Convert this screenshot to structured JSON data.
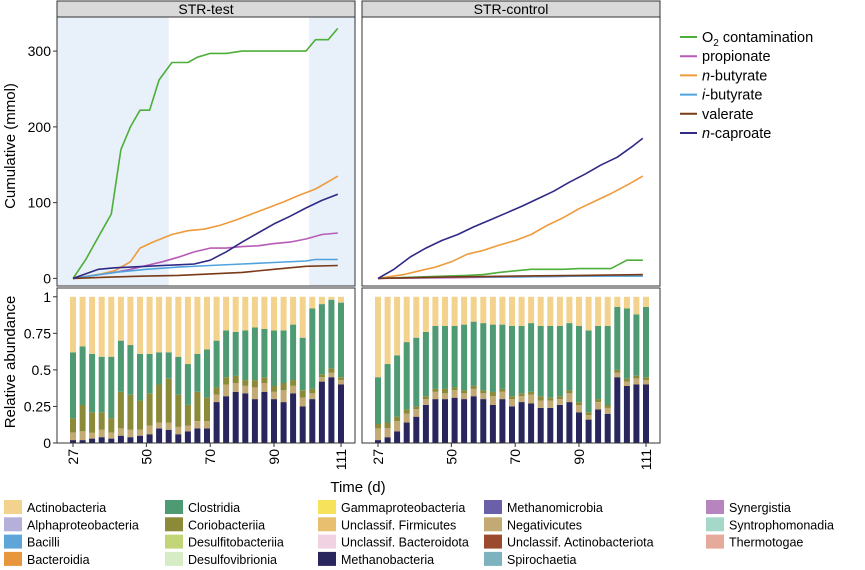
{
  "chart_data": {
    "type": "line+stacked-bar",
    "panels": [
      "STR-test",
      "STR-control"
    ],
    "xlabel": "Time (d)",
    "x_ticks": [
      27,
      50,
      70,
      90,
      111
    ],
    "top": {
      "ylabel": "Cumulative (mmol)",
      "ylim": [
        -10,
        345
      ],
      "y_ticks": [
        0,
        100,
        200,
        300
      ],
      "shaded_intervals_test": [
        [
          27,
          57
        ],
        [
          101,
          111
        ]
      ],
      "legend": [
        {
          "label": "O2 contamination",
          "color": "#4daf3a"
        },
        {
          "label": "propionate",
          "color": "#b85bb7"
        },
        {
          "label": "n-butyrate",
          "color": "#ef9a3b"
        },
        {
          "label": "i-butyrate",
          "color": "#4fa3dd"
        },
        {
          "label": "valerate",
          "color": "#7a3a17"
        },
        {
          "label": "n-caproate",
          "color": "#2e2a86"
        }
      ],
      "series": {
        "STR-test": [
          {
            "name": "O2 contamination",
            "x": [
              27,
              31,
              35,
              39,
              42,
              45,
              48,
              51,
              54,
              58,
              63,
              66,
              70,
              75,
              80,
              85,
              90,
              95,
              100,
              103,
              107,
              110
            ],
            "y": [
              0,
              25,
              55,
              85,
              170,
              200,
              222,
              222,
              262,
              285,
              285,
              292,
              297,
              297,
              300,
              300,
              300,
              300,
              300,
              315,
              315,
              330
            ]
          },
          {
            "name": "propionate",
            "x": [
              27,
              35,
              40,
              45,
              50,
              55,
              60,
              65,
              70,
              75,
              80,
              85,
              90,
              95,
              100,
              105,
              110
            ],
            "y": [
              0,
              5,
              8,
              12,
              17,
              22,
              28,
              35,
              40,
              40,
              42,
              43,
              46,
              48,
              52,
              58,
              60
            ]
          },
          {
            "name": "n-butyrate",
            "x": [
              27,
              35,
              40,
              45,
              48,
              52,
              58,
              63,
              68,
              73,
              78,
              83,
              88,
              93,
              98,
              103,
              108,
              110
            ],
            "y": [
              0,
              5,
              10,
              22,
              40,
              48,
              58,
              63,
              65,
              70,
              77,
              85,
              93,
              101,
              110,
              118,
              130,
              135
            ]
          },
          {
            "name": "i-butyrate",
            "x": [
              27,
              40,
              50,
              60,
              70,
              80,
              90,
              100,
              103,
              110
            ],
            "y": [
              0,
              8,
              12,
              15,
              17,
              19,
              21,
              23,
              25,
              25
            ]
          },
          {
            "name": "valerate",
            "x": [
              27,
              40,
              50,
              60,
              70,
              80,
              90,
              100,
              110
            ],
            "y": [
              0,
              2,
              3,
              4,
              6,
              8,
              12,
              16,
              17
            ]
          },
          {
            "name": "n-caproate",
            "x": [
              27,
              35,
              40,
              45,
              50,
              55,
              60,
              65,
              70,
              75,
              80,
              85,
              90,
              95,
              100,
              105,
              110
            ],
            "y": [
              0,
              12,
              14,
              15,
              16,
              17,
              18,
              19,
              24,
              35,
              48,
              60,
              72,
              82,
              93,
              103,
              111
            ]
          }
        ],
        "STR-control": [
          {
            "name": "O2 contamination",
            "x": [
              27,
              40,
              55,
              60,
              65,
              70,
              75,
              80,
              85,
              90,
              95,
              100,
              105,
              110
            ],
            "y": [
              0,
              2,
              4,
              5,
              8,
              10,
              12,
              12,
              12,
              13,
              13,
              13,
              24,
              24
            ]
          },
          {
            "name": "propionate",
            "x": [
              27,
              50,
              70,
              90,
              110
            ],
            "y": [
              0,
              1,
              2,
              3,
              4
            ]
          },
          {
            "name": "n-butyrate",
            "x": [
              27,
              35,
              40,
              45,
              50,
              55,
              60,
              65,
              70,
              75,
              80,
              85,
              90,
              95,
              100,
              105,
              110
            ],
            "y": [
              0,
              5,
              10,
              15,
              22,
              32,
              37,
              44,
              50,
              58,
              70,
              80,
              92,
              102,
              112,
              123,
              135
            ]
          },
          {
            "name": "i-butyrate",
            "x": [
              27,
              50,
              70,
              90,
              110
            ],
            "y": [
              0,
              2,
              2,
              3,
              3
            ]
          },
          {
            "name": "valerate",
            "x": [
              27,
              50,
              70,
              90,
              110
            ],
            "y": [
              0,
              2,
              3,
              4,
              5
            ]
          },
          {
            "name": "n-caproate",
            "x": [
              27,
              32,
              37,
              42,
              47,
              52,
              57,
              62,
              67,
              72,
              77,
              82,
              87,
              92,
              97,
              102,
              107,
              110
            ],
            "y": [
              0,
              12,
              28,
              40,
              50,
              58,
              68,
              77,
              86,
              95,
              105,
              115,
              127,
              138,
              150,
              160,
              175,
              185
            ]
          }
        ]
      }
    },
    "bottom": {
      "ylabel": "Relative abundance",
      "ylim": [
        0,
        1.06
      ],
      "y_ticks": [
        "0",
        "0.25",
        "0.5",
        "0.75",
        "1"
      ],
      "y_tick_values": [
        0,
        0.25,
        0.5,
        0.75,
        1
      ],
      "stack_order": [
        "Methanobacteria",
        "Negativicutes",
        "Coriobacteriia",
        "Clostridia",
        "Actinobacteria"
      ],
      "colors": {
        "Methanobacteria": "#29265e",
        "Negativicutes": "#c3a973",
        "Coriobacteriia": "#8a8a38",
        "Clostridia": "#4e9a72",
        "Actinobacteria": "#f3d28e"
      },
      "STR-test": {
        "days": [
          27,
          30,
          33,
          36,
          39,
          42,
          45,
          48,
          51,
          54,
          57,
          60,
          63,
          66,
          69,
          72,
          75,
          78,
          81,
          84,
          87,
          90,
          93,
          96,
          99,
          102,
          105,
          108,
          111
        ],
        "Methanobacteria": [
          0.02,
          0.02,
          0.03,
          0.04,
          0.03,
          0.05,
          0.04,
          0.05,
          0.06,
          0.1,
          0.09,
          0.06,
          0.08,
          0.1,
          0.1,
          0.28,
          0.32,
          0.35,
          0.34,
          0.3,
          0.35,
          0.3,
          0.28,
          0.34,
          0.25,
          0.3,
          0.42,
          0.45,
          0.4
        ],
        "Negativicutes": [
          0.05,
          0.06,
          0.04,
          0.05,
          0.04,
          0.05,
          0.05,
          0.04,
          0.06,
          0.04,
          0.05,
          0.05,
          0.04,
          0.05,
          0.05,
          0.05,
          0.08,
          0.06,
          0.05,
          0.08,
          0.06,
          0.05,
          0.08,
          0.05,
          0.06,
          0.04,
          0.03,
          0.03,
          0.03
        ],
        "Coriobacteriia": [
          0.1,
          0.18,
          0.14,
          0.12,
          0.1,
          0.25,
          0.24,
          0.2,
          0.22,
          0.26,
          0.3,
          0.22,
          0.14,
          0.2,
          0.16,
          0.05,
          0.05,
          0.05,
          0.04,
          0.05,
          0.04,
          0.04,
          0.05,
          0.04,
          0.05,
          0.03,
          0.02,
          0.03,
          0.02
        ],
        "Clostridia": [
          0.45,
          0.4,
          0.4,
          0.38,
          0.42,
          0.35,
          0.34,
          0.32,
          0.27,
          0.22,
          0.18,
          0.26,
          0.28,
          0.26,
          0.33,
          0.32,
          0.32,
          0.3,
          0.34,
          0.36,
          0.33,
          0.38,
          0.36,
          0.38,
          0.36,
          0.55,
          0.48,
          0.47,
          0.51
        ],
        "Actinobacteria": [
          0.38,
          0.34,
          0.39,
          0.41,
          0.41,
          0.3,
          0.33,
          0.39,
          0.39,
          0.38,
          0.38,
          0.41,
          0.46,
          0.39,
          0.36,
          0.3,
          0.23,
          0.24,
          0.23,
          0.21,
          0.22,
          0.23,
          0.23,
          0.19,
          0.28,
          0.08,
          0.05,
          0.02,
          0.04
        ]
      },
      "STR-control": {
        "days": [
          27,
          30,
          33,
          36,
          39,
          42,
          45,
          48,
          51,
          54,
          57,
          60,
          63,
          66,
          69,
          72,
          75,
          78,
          81,
          84,
          87,
          90,
          93,
          96,
          99,
          102,
          105,
          108,
          111
        ],
        "Methanobacteria": [
          0.02,
          0.04,
          0.08,
          0.14,
          0.18,
          0.26,
          0.3,
          0.3,
          0.31,
          0.3,
          0.32,
          0.3,
          0.26,
          0.3,
          0.25,
          0.28,
          0.27,
          0.24,
          0.24,
          0.26,
          0.28,
          0.21,
          0.16,
          0.23,
          0.2,
          0.45,
          0.39,
          0.4,
          0.4
        ],
        "Negativicutes": [
          0.08,
          0.06,
          0.07,
          0.06,
          0.05,
          0.04,
          0.05,
          0.04,
          0.05,
          0.04,
          0.05,
          0.04,
          0.06,
          0.05,
          0.05,
          0.04,
          0.06,
          0.05,
          0.05,
          0.04,
          0.06,
          0.05,
          0.03,
          0.05,
          0.04,
          0.03,
          0.03,
          0.04,
          0.03
        ],
        "Coriobacteriia": [
          0.03,
          0.04,
          0.03,
          0.03,
          0.02,
          0.02,
          0.02,
          0.03,
          0.02,
          0.02,
          0.02,
          0.02,
          0.03,
          0.02,
          0.02,
          0.02,
          0.02,
          0.03,
          0.02,
          0.02,
          0.02,
          0.02,
          0.02,
          0.02,
          0.02,
          0.02,
          0.02,
          0.02,
          0.02
        ],
        "Clostridia": [
          0.32,
          0.4,
          0.42,
          0.46,
          0.47,
          0.44,
          0.43,
          0.43,
          0.42,
          0.45,
          0.44,
          0.46,
          0.46,
          0.44,
          0.48,
          0.46,
          0.47,
          0.48,
          0.49,
          0.48,
          0.46,
          0.52,
          0.56,
          0.5,
          0.54,
          0.43,
          0.48,
          0.42,
          0.48
        ],
        "Actinobacteria": [
          0.55,
          0.46,
          0.4,
          0.31,
          0.28,
          0.24,
          0.2,
          0.2,
          0.2,
          0.19,
          0.17,
          0.18,
          0.19,
          0.19,
          0.2,
          0.2,
          0.18,
          0.2,
          0.2,
          0.2,
          0.18,
          0.2,
          0.23,
          0.2,
          0.2,
          0.07,
          0.08,
          0.12,
          0.07
        ]
      }
    }
  },
  "taxa_legend": [
    {
      "label": "Actinobacteria",
      "color": "#f3d28e"
    },
    {
      "label": "Alphaproteobacteria",
      "color": "#b4b0d9"
    },
    {
      "label": "Bacilli",
      "color": "#5fa6d8"
    },
    {
      "label": "Bacteroidia",
      "color": "#e7963e"
    },
    {
      "label": "Clostridia",
      "color": "#4e9a72"
    },
    {
      "label": "Coriobacteriia",
      "color": "#8a8a38"
    },
    {
      "label": "Desulfitobacteriia",
      "color": "#c2d678"
    },
    {
      "label": "Desulfovibrionia",
      "color": "#d6ecc4"
    },
    {
      "label": "Gammaproteobacteria",
      "color": "#f7e25c"
    },
    {
      "label": "Unclassif. Firmicutes",
      "color": "#e7bf6e"
    },
    {
      "label": "Unclassif. Bacteroidota",
      "color": "#f1d2e2"
    },
    {
      "label": "Methanobacteria",
      "color": "#29265e"
    },
    {
      "label": "Methanomicrobia",
      "color": "#6a60aa"
    },
    {
      "label": "Negativicutes",
      "color": "#c3a973"
    },
    {
      "label": "Unclassif. Actinobacteriota",
      "color": "#9b4a2e"
    },
    {
      "label": "Spirochaetia",
      "color": "#7db3bf"
    },
    {
      "label": "Synergistia",
      "color": "#b685bf"
    },
    {
      "label": "Syntrophomonadia",
      "color": "#a6d8c9"
    },
    {
      "label": "Thermotogae",
      "color": "#e5aa9b"
    }
  ]
}
